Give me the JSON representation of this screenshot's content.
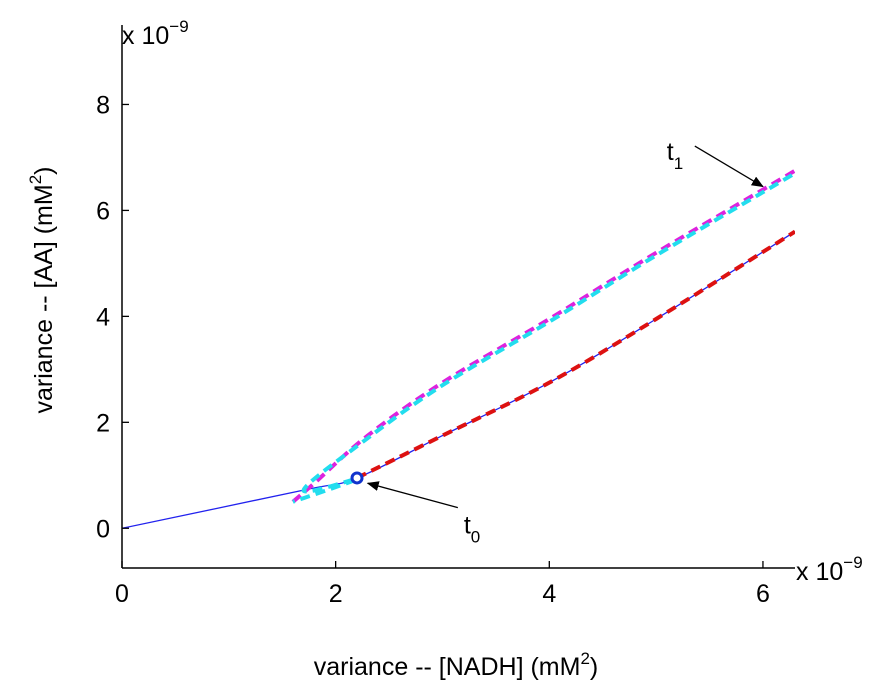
{
  "chart_data": {
    "type": "line",
    "title": "",
    "xlabel": "variance -- [NADH] (mM",
    "xlabel_sup": "2",
    "xlabel_suffix": ")",
    "ylabel": "variance -- [AA]  (mM",
    "ylabel_sup": "2",
    "ylabel_suffix": ")",
    "x_multiplier": {
      "base": "x 10",
      "exp": "−9"
    },
    "y_multiplier": {
      "base": "x 10",
      "exp": "−9"
    },
    "xlim": [
      0,
      6.3
    ],
    "ylim": [
      -0.75,
      9.5
    ],
    "x_ticks": [
      0,
      2,
      4,
      6
    ],
    "x_tick_labels": [
      "0",
      "2",
      "4",
      "6"
    ],
    "y_ticks": [
      0,
      2,
      4,
      6,
      8
    ],
    "y_tick_labels": [
      "0",
      "2",
      "4",
      "6",
      "8"
    ],
    "grid": false,
    "series": [
      {
        "name": "blue trajectory",
        "color": "#2222ee",
        "style": "solid",
        "x": [
          0,
          1.7,
          2.2,
          3.0,
          4.0,
          5.0,
          6.3
        ],
        "y": [
          0,
          0.72,
          0.95,
          1.75,
          2.75,
          3.95,
          5.6
        ]
      },
      {
        "name": "red dashed",
        "color": "#dd1111",
        "style": "dashed",
        "x": [
          2.2,
          3.0,
          4.0,
          5.0,
          6.3
        ],
        "y": [
          0.95,
          1.75,
          2.75,
          3.95,
          5.6
        ]
      },
      {
        "name": "magenta dashed",
        "color": "#dd22dd",
        "style": "dashed",
        "x": [
          1.6,
          1.8,
          2.3,
          3.0,
          4.0,
          5.0,
          6.3
        ],
        "y": [
          0.5,
          0.85,
          1.75,
          2.75,
          3.95,
          5.2,
          6.75
        ]
      },
      {
        "name": "cyan dashed",
        "color": "#22ddee",
        "style": "dashed",
        "x": [
          1.6,
          2.2,
          1.7,
          2.3,
          3.0,
          4.0,
          5.0,
          6.3
        ],
        "y": [
          0.5,
          0.93,
          0.72,
          1.7,
          2.7,
          3.9,
          5.15,
          6.7
        ]
      }
    ],
    "marker": {
      "name": "t0 point",
      "x": 2.2,
      "y": 0.95,
      "color": "#1133cc"
    },
    "annotations": [
      {
        "text": "t",
        "sub": "0",
        "x": 3.2,
        "y": -0.1,
        "arrow_to": [
          2.3,
          0.85
        ]
      },
      {
        "text": "t",
        "sub": "1",
        "x": 5.1,
        "y": 6.95,
        "arrow_to": [
          6.0,
          6.45
        ]
      }
    ]
  }
}
